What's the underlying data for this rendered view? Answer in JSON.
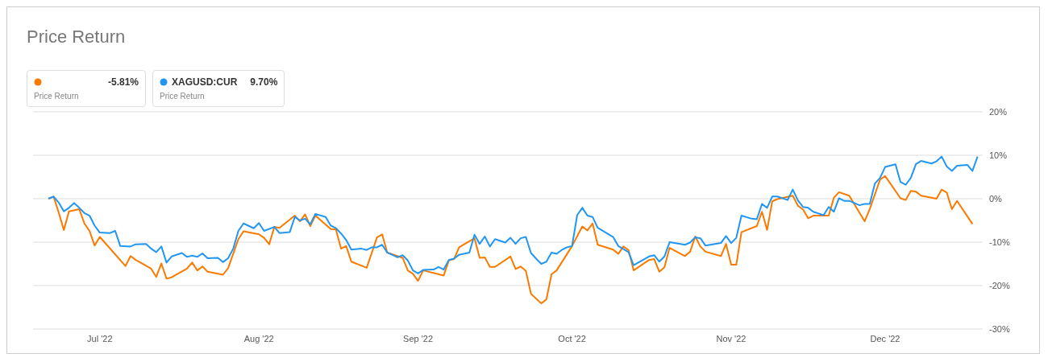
{
  "chart_data": {
    "type": "line",
    "title": "Price Return",
    "annotations": [
      "-5.81%",
      "Price Return",
      "9.70%",
      "Price Return"
    ],
    "legend": "top left",
    "grid": "y",
    "xlim": [
      "2022-06-18",
      "2022-12-20"
    ],
    "xticks": [
      {
        "value": "2022-07-01",
        "label": "Jul '22"
      },
      {
        "value": "2022-08-01",
        "label": "Aug '22"
      },
      {
        "value": "2022-09-01",
        "label": "Sep '22"
      },
      {
        "value": "2022-10-01",
        "label": "Oct '22"
      },
      {
        "value": "2022-11-01",
        "label": "Nov '22"
      },
      {
        "value": "2022-12-01",
        "label": "Dec '22"
      }
    ],
    "ylim": [
      -30,
      20
    ],
    "yticks": [
      {
        "value": -30,
        "label": "-30%"
      },
      {
        "value": -20,
        "label": "-20%"
      },
      {
        "value": -10,
        "label": "-10%"
      },
      {
        "value": 0,
        "label": "0%"
      },
      {
        "value": 10,
        "label": "10%"
      },
      {
        "value": 20,
        "label": "20%"
      }
    ],
    "series": [
      {
        "color": "#fa7a00",
        "x": [
          "2022-06-21",
          "2022-06-22",
          "2022-06-23",
          "2022-06-24",
          "2022-06-25",
          "2022-06-27",
          "2022-06-28",
          "2022-06-29",
          "2022-06-30",
          "2022-07-01",
          "2022-07-06",
          "2022-07-07",
          "2022-07-08",
          "2022-07-11",
          "2022-07-12",
          "2022-07-13",
          "2022-07-14",
          "2022-07-15",
          "2022-07-18",
          "2022-07-19",
          "2022-07-20",
          "2022-07-21",
          "2022-07-22",
          "2022-07-25",
          "2022-07-26",
          "2022-07-28",
          "2022-07-29",
          "2022-08-01",
          "2022-08-02",
          "2022-08-03",
          "2022-08-04",
          "2022-08-05",
          "2022-08-08",
          "2022-08-09",
          "2022-08-10",
          "2022-08-11",
          "2022-08-12",
          "2022-08-15",
          "2022-08-16",
          "2022-08-17",
          "2022-08-18",
          "2022-08-19",
          "2022-08-22",
          "2022-08-24",
          "2022-08-25",
          "2022-08-26",
          "2022-08-29",
          "2022-08-30",
          "2022-08-31",
          "2022-09-01",
          "2022-09-02",
          "2022-09-06",
          "2022-09-07",
          "2022-09-08",
          "2022-09-09",
          "2022-09-12",
          "2022-09-13",
          "2022-09-14",
          "2022-09-15",
          "2022-09-16",
          "2022-09-19",
          "2022-09-20",
          "2022-09-21",
          "2022-09-22",
          "2022-09-23",
          "2022-09-25",
          "2022-09-26",
          "2022-09-27",
          "2022-09-28",
          "2022-10-01",
          "2022-10-03",
          "2022-10-04",
          "2022-10-05",
          "2022-10-06",
          "2022-10-09",
          "2022-10-10",
          "2022-10-11",
          "2022-10-12",
          "2022-10-13",
          "2022-10-16",
          "2022-10-17",
          "2022-10-18",
          "2022-10-19",
          "2022-10-20",
          "2022-10-23",
          "2022-10-24",
          "2022-10-25",
          "2022-10-26",
          "2022-10-27",
          "2022-10-30",
          "2022-10-31",
          "2022-11-01",
          "2022-11-02",
          "2022-11-03",
          "2022-11-06",
          "2022-11-07",
          "2022-11-08",
          "2022-11-09",
          "2022-11-10",
          "2022-11-13",
          "2022-11-14",
          "2022-11-15",
          "2022-11-16",
          "2022-11-17",
          "2022-11-20",
          "2022-11-21",
          "2022-11-22",
          "2022-11-24",
          "2022-11-27",
          "2022-11-28",
          "2022-11-30",
          "2022-12-01",
          "2022-12-04",
          "2022-12-05",
          "2022-12-06",
          "2022-12-07",
          "2022-12-08",
          "2022-12-11",
          "2022-12-12",
          "2022-12-13",
          "2022-12-14",
          "2022-12-15",
          "2022-12-18"
        ],
        "values": [
          0,
          0.5,
          -3.2,
          -7.2,
          -2.9,
          -2.4,
          -5.7,
          -7.4,
          -10.8,
          -8.8,
          -15.5,
          -13.2,
          -14.1,
          -16.1,
          -18.0,
          -14.9,
          -18.4,
          -18.1,
          -16.1,
          -14.7,
          -16.5,
          -15.6,
          -16.8,
          -17.5,
          -16.0,
          -9.3,
          -7.5,
          -8.2,
          -9.0,
          -10.5,
          -6.5,
          -6.7,
          -3.9,
          -5.2,
          -3.6,
          -6.3,
          -3.9,
          -7.0,
          -7.1,
          -11.5,
          -10.9,
          -14.5,
          -15.9,
          -8.9,
          -8.2,
          -12.4,
          -13.6,
          -16.5,
          -17.3,
          -18.9,
          -16.5,
          -17.7,
          -14.2,
          -13.9,
          -11.2,
          -9.1,
          -13.6,
          -13.5,
          -15.7,
          -15.7,
          -13.3,
          -16.2,
          -15.6,
          -16.6,
          -21.9,
          -24.1,
          -23.2,
          -17.4,
          -16.5,
          -10.9,
          -6.4,
          -7.3,
          -5.7,
          -10.6,
          -11.7,
          -12.7,
          -11.0,
          -11.8,
          -16.5,
          -14.1,
          -13.9,
          -16.8,
          -15.8,
          -11.3,
          -13.2,
          -12.2,
          -8.7,
          -11.0,
          -12.2,
          -13.2,
          -10.4,
          -15.2,
          -15.2,
          -7.7,
          -6.3,
          -3.0,
          -7.2,
          -0.6,
          -0.1,
          0.7,
          -1.6,
          -2.5,
          -4.5,
          -3.9,
          -3.9,
          0.2,
          1.5,
          0.7,
          -5.2,
          -2.4,
          4.4,
          5.2,
          0.1,
          -0.3,
          1.8,
          1.6,
          0.7,
          0.0,
          2.1,
          1.4,
          -2.4,
          -0.5,
          -5.8
        ]
      },
      {
        "name": "XAGUSD:CUR",
        "color": "#2196f3",
        "x": [
          "2022-06-21",
          "2022-06-22",
          "2022-06-23",
          "2022-06-24",
          "2022-06-25",
          "2022-06-26",
          "2022-06-27",
          "2022-06-28",
          "2022-06-29",
          "2022-06-30",
          "2022-07-01",
          "2022-07-03",
          "2022-07-04",
          "2022-07-05",
          "2022-07-07",
          "2022-07-08",
          "2022-07-10",
          "2022-07-11",
          "2022-07-12",
          "2022-07-13",
          "2022-07-14",
          "2022-07-15",
          "2022-07-17",
          "2022-07-18",
          "2022-07-19",
          "2022-07-20",
          "2022-07-21",
          "2022-07-22",
          "2022-07-24",
          "2022-07-25",
          "2022-07-26",
          "2022-07-27",
          "2022-07-28",
          "2022-07-29",
          "2022-07-31",
          "2022-08-01",
          "2022-08-02",
          "2022-08-04",
          "2022-08-05",
          "2022-08-07",
          "2022-08-08",
          "2022-08-09",
          "2022-08-10",
          "2022-08-11",
          "2022-08-12",
          "2022-08-14",
          "2022-08-15",
          "2022-08-16",
          "2022-08-17",
          "2022-08-18",
          "2022-08-19",
          "2022-08-21",
          "2022-08-22",
          "2022-08-23",
          "2022-08-24",
          "2022-08-25",
          "2022-08-26",
          "2022-08-28",
          "2022-08-29",
          "2022-08-30",
          "2022-08-31",
          "2022-09-01",
          "2022-09-02",
          "2022-09-04",
          "2022-09-05",
          "2022-09-06",
          "2022-09-07",
          "2022-09-08",
          "2022-09-09",
          "2022-09-11",
          "2022-09-12",
          "2022-09-13",
          "2022-09-14",
          "2022-09-15",
          "2022-09-16",
          "2022-09-18",
          "2022-09-19",
          "2022-09-20",
          "2022-09-21",
          "2022-09-22",
          "2022-09-23",
          "2022-09-24",
          "2022-09-25",
          "2022-09-26",
          "2022-09-27",
          "2022-09-28",
          "2022-09-29",
          "2022-09-30",
          "2022-10-01",
          "2022-10-02",
          "2022-10-03",
          "2022-10-04",
          "2022-10-05",
          "2022-10-06",
          "2022-10-09",
          "2022-10-10",
          "2022-10-12",
          "2022-10-13",
          "2022-10-16",
          "2022-10-17",
          "2022-10-18",
          "2022-10-19",
          "2022-10-20",
          "2022-10-23",
          "2022-10-24",
          "2022-10-25",
          "2022-10-26",
          "2022-10-27",
          "2022-10-30",
          "2022-10-31",
          "2022-11-01",
          "2022-11-02",
          "2022-11-03",
          "2022-11-05",
          "2022-11-06",
          "2022-11-07",
          "2022-11-08",
          "2022-11-09",
          "2022-11-10",
          "2022-11-12",
          "2022-11-13",
          "2022-11-14",
          "2022-11-15",
          "2022-11-16",
          "2022-11-17",
          "2022-11-19",
          "2022-11-20",
          "2022-11-21",
          "2022-11-22",
          "2022-11-23",
          "2022-11-24",
          "2022-11-26",
          "2022-11-27",
          "2022-11-28",
          "2022-11-29",
          "2022-11-30",
          "2022-12-01",
          "2022-12-03",
          "2022-12-04",
          "2022-12-05",
          "2022-12-06",
          "2022-12-07",
          "2022-12-08",
          "2022-12-10",
          "2022-12-11",
          "2022-12-12",
          "2022-12-13",
          "2022-12-14",
          "2022-12-15",
          "2022-12-17",
          "2022-12-18",
          "2022-12-19"
        ],
        "values": [
          0,
          0.5,
          -0.9,
          -2.9,
          -2.1,
          -1.0,
          -2.1,
          -3.3,
          -3.9,
          -6.2,
          -7.8,
          -7.9,
          -7.4,
          -10.9,
          -11.0,
          -10.5,
          -10.4,
          -11.5,
          -12.3,
          -11.0,
          -14.7,
          -13.3,
          -12.5,
          -13.4,
          -13.1,
          -13.4,
          -12.6,
          -13.7,
          -13.6,
          -14.6,
          -13.7,
          -11.5,
          -7.4,
          -5.7,
          -6.8,
          -5.6,
          -7.4,
          -6.5,
          -7.9,
          -7.7,
          -4.2,
          -5.0,
          -4.6,
          -5.9,
          -3.5,
          -4.2,
          -6.2,
          -6.8,
          -8.0,
          -9.5,
          -11.7,
          -11.5,
          -11.8,
          -11.2,
          -11.2,
          -10.6,
          -12.4,
          -13.5,
          -13.0,
          -14.2,
          -16.5,
          -17.2,
          -16.4,
          -16.3,
          -15.7,
          -16.3,
          -14.1,
          -13.8,
          -12.9,
          -12.4,
          -8.3,
          -10.4,
          -8.7,
          -11.0,
          -9.3,
          -10.1,
          -9.0,
          -10.4,
          -9.1,
          -8.8,
          -12.5,
          -13.8,
          -15.0,
          -14.5,
          -12.4,
          -12.7,
          -11.8,
          -11.2,
          -10.9,
          -3.8,
          -2.1,
          -3.9,
          -4.2,
          -6.7,
          -8.8,
          -10.9,
          -12.3,
          -15.3,
          -13.3,
          -13.0,
          -14.5,
          -13.3,
          -10.0,
          -10.6,
          -10.1,
          -8.9,
          -9.1,
          -10.8,
          -10.2,
          -8.6,
          -10.2,
          -9.0,
          -3.9,
          -4.6,
          -4.7,
          -1.2,
          -2.1,
          0.5,
          0.5,
          -0.3,
          2.1,
          -0.4,
          -1.9,
          -2.1,
          -3.0,
          -3.8,
          -1.9,
          -3.0,
          0.1,
          -0.5,
          -0.5,
          -1.5,
          -1.2,
          -1.2,
          3.5,
          4.8,
          7.3,
          7.9,
          3.8,
          3.2,
          4.8,
          8.0,
          8.7,
          8.1,
          8.6,
          9.7,
          7.4,
          6.4,
          7.6,
          7.8,
          6.4,
          9.7
        ]
      }
    ]
  }
}
